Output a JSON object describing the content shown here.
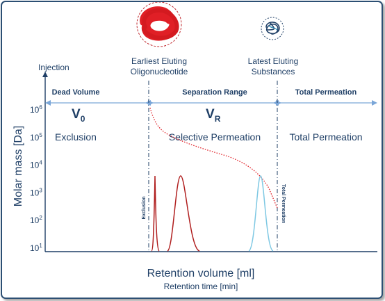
{
  "injection_label": "Injection",
  "top_labels": {
    "earliest": [
      "Earliest Eluting",
      "Oligonucleotide"
    ],
    "latest": [
      "Latest Eluting",
      "Substances"
    ]
  },
  "regions": {
    "dead_volume": "Dead Volume",
    "separation_range": "Separation Range",
    "total_permeation": "Total Permeation"
  },
  "symbols": {
    "v0_main": "V",
    "v0_sub": "0",
    "vr_main": "V",
    "vr_sub": "R"
  },
  "modes": {
    "exclusion": "Exclusion",
    "selective": "Selective Permeation",
    "total": "Total Permeation"
  },
  "vertical_labels": {
    "exclusion": "Exclusion",
    "total_permeation": "Total Permeation"
  },
  "y_axis": {
    "label": "Molar mass [Da]",
    "ticks": [
      {
        "base": "10",
        "exp": "6"
      },
      {
        "base": "10",
        "exp": "5"
      },
      {
        "base": "10",
        "exp": "4"
      },
      {
        "base": "10",
        "exp": "3"
      },
      {
        "base": "10",
        "exp": "2"
      },
      {
        "base": "10",
        "exp": "1"
      }
    ]
  },
  "x_axis": {
    "label": "Retention volume [ml]",
    "sublabel": "Retention time [min]"
  },
  "colors": {
    "axis": "#1f3f66",
    "text": "#1f3f66",
    "arrow": "#7aa6d8",
    "dark_red": "#b01e1e",
    "red": "#e01f26",
    "light_blue": "#7ec8e3",
    "knot_blue": "#1f3f66"
  }
}
